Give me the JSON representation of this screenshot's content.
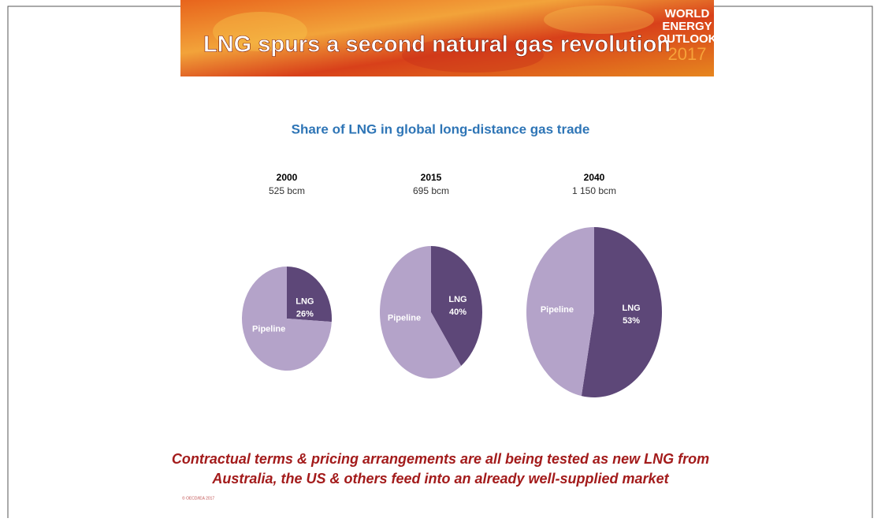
{
  "header": {
    "title": "LNG spurs a second natural gas revolution",
    "logo": {
      "lines": [
        "WORLD",
        "ENERGY",
        "OUTLOOK"
      ],
      "year": "2017"
    }
  },
  "figure_title": "Share of LNG in global long-distance gas trade",
  "chart_data": [
    {
      "type": "pie",
      "title": "2000",
      "subtitle": "525 bcm",
      "categories": [
        "LNG",
        "Pipeline"
      ],
      "values": [
        26,
        74
      ],
      "value_labels": [
        "26%",
        null
      ],
      "colors": [
        "#5d4778",
        "#b4a3c9"
      ]
    },
    {
      "type": "pie",
      "title": "2015",
      "subtitle": "695 bcm",
      "categories": [
        "LNG",
        "Pipeline"
      ],
      "values": [
        40,
        60
      ],
      "value_labels": [
        "40%",
        null
      ],
      "colors": [
        "#5d4778",
        "#b4a3c9"
      ]
    },
    {
      "type": "pie",
      "title": "2040",
      "subtitle": "1 150 bcm",
      "categories": [
        "LNG",
        "Pipeline"
      ],
      "values": [
        53,
        47
      ],
      "value_labels": [
        "53%",
        null
      ],
      "colors": [
        "#5d4778",
        "#b4a3c9"
      ]
    }
  ],
  "footer": {
    "note": [
      "Contractual terms & pricing arrangements are all being tested as new LNG from",
      "Australia, the US & others feed into an already well-supplied market"
    ],
    "source": "© OECD/IEA 2017"
  }
}
